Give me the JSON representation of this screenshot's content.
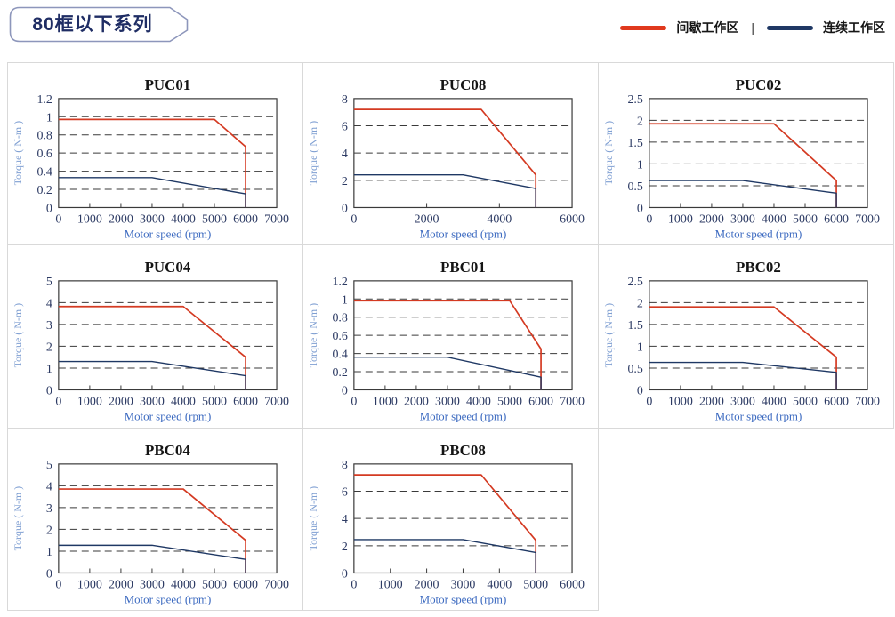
{
  "header": {
    "title": "80框以下系列"
  },
  "legend": {
    "items": [
      {
        "label": "间歇工作区",
        "color": "#e0391d"
      },
      {
        "label": "连续工作区",
        "color": "#1f3864"
      }
    ],
    "separator": "|"
  },
  "colors": {
    "intermittent": "#d43a22",
    "continuous": "#1f3864",
    "axis": "#3a3a3a",
    "tick_label": "#2c3a63",
    "title": "#141414",
    "xlabel": "#3c6ac0",
    "ylabel": "#7f9fd2",
    "cell_border": "#d9d9d9",
    "badge_border": "#8d96bb",
    "badge_text": "#1f2d64"
  },
  "chart_data": [
    {
      "type": "line",
      "title": "PUC01",
      "xlabel": "Motor speed (rpm)",
      "ylabel": "Torque ( N-m )",
      "xlim": [
        0,
        7000
      ],
      "ylim": [
        0,
        1.2
      ],
      "xticks": [
        0,
        1000,
        2000,
        3000,
        4000,
        5000,
        6000,
        7000
      ],
      "yticks": [
        0,
        0.2,
        0.4,
        0.6,
        0.8,
        1,
        1.2
      ],
      "grid": "dashed-horizontal",
      "legend_position": "none",
      "series": [
        {
          "name": "间歇工作区",
          "color_key": "intermittent",
          "points": [
            [
              0,
              0.97
            ],
            [
              5000,
              0.97
            ],
            [
              6000,
              0.67
            ],
            [
              6000,
              0
            ]
          ]
        },
        {
          "name": "连续工作区",
          "color_key": "continuous",
          "points": [
            [
              0,
              0.33
            ],
            [
              3000,
              0.33
            ],
            [
              6000,
              0.15
            ],
            [
              6000,
              0
            ]
          ]
        }
      ]
    },
    {
      "type": "line",
      "title": "PUC08",
      "xlabel": "Motor speed (rpm)",
      "ylabel": "Torque ( N-m )",
      "xlim": [
        0,
        6000
      ],
      "ylim": [
        0,
        8
      ],
      "xticks": [
        0,
        2000,
        4000,
        6000
      ],
      "yticks": [
        0,
        2,
        4,
        6,
        8
      ],
      "grid": "dashed-horizontal",
      "legend_position": "none",
      "series": [
        {
          "name": "间歇工作区",
          "color_key": "intermittent",
          "points": [
            [
              0,
              7.2
            ],
            [
              3500,
              7.2
            ],
            [
              5000,
              2.4
            ],
            [
              5000,
              0
            ]
          ]
        },
        {
          "name": "连续工作区",
          "color_key": "continuous",
          "points": [
            [
              0,
              2.4
            ],
            [
              3000,
              2.4
            ],
            [
              5000,
              1.4
            ],
            [
              5000,
              0
            ]
          ]
        }
      ]
    },
    {
      "type": "line",
      "title": "PUC02",
      "xlabel": "Motor speed (rpm)",
      "ylabel": "Torque ( N-m )",
      "xlim": [
        0,
        7000
      ],
      "ylim": [
        0,
        2.5
      ],
      "xticks": [
        0,
        1000,
        2000,
        3000,
        4000,
        5000,
        6000,
        7000
      ],
      "yticks": [
        0,
        0.5,
        1,
        1.5,
        2,
        2.5
      ],
      "grid": "dashed-horizontal",
      "legend_position": "none",
      "series": [
        {
          "name": "间歇工作区",
          "color_key": "intermittent",
          "points": [
            [
              0,
              1.92
            ],
            [
              4000,
              1.92
            ],
            [
              6000,
              0.62
            ],
            [
              6000,
              0
            ]
          ]
        },
        {
          "name": "连续工作区",
          "color_key": "continuous",
          "points": [
            [
              0,
              0.62
            ],
            [
              3000,
              0.62
            ],
            [
              6000,
              0.33
            ],
            [
              6000,
              0
            ]
          ]
        }
      ]
    },
    {
      "type": "line",
      "title": "PUC04",
      "xlabel": "Motor speed (rpm)",
      "ylabel": "Torque ( N-m )",
      "xlim": [
        0,
        7000
      ],
      "ylim": [
        0,
        5
      ],
      "xticks": [
        0,
        1000,
        2000,
        3000,
        4000,
        5000,
        6000,
        7000
      ],
      "yticks": [
        0,
        1,
        2,
        3,
        4,
        5
      ],
      "grid": "dashed-horizontal",
      "legend_position": "none",
      "series": [
        {
          "name": "间歇工作区",
          "color_key": "intermittent",
          "points": [
            [
              0,
              3.82
            ],
            [
              4000,
              3.82
            ],
            [
              6000,
              1.5
            ],
            [
              6000,
              0
            ]
          ]
        },
        {
          "name": "连续工作区",
          "color_key": "continuous",
          "points": [
            [
              0,
              1.3
            ],
            [
              3000,
              1.3
            ],
            [
              6000,
              0.65
            ],
            [
              6000,
              0
            ]
          ]
        }
      ]
    },
    {
      "type": "line",
      "title": "PBC01",
      "xlabel": "Motor speed (rpm)",
      "ylabel": "Torque ( N-m )",
      "xlim": [
        0,
        7000
      ],
      "ylim": [
        0,
        1.2
      ],
      "xticks": [
        0,
        1000,
        2000,
        3000,
        4000,
        5000,
        6000,
        7000
      ],
      "yticks": [
        0,
        0.2,
        0.4,
        0.6,
        0.8,
        1,
        1.2
      ],
      "grid": "dashed-horizontal",
      "legend_position": "none",
      "series": [
        {
          "name": "间歇工作区",
          "color_key": "intermittent",
          "points": [
            [
              0,
              0.98
            ],
            [
              5000,
              0.98
            ],
            [
              6000,
              0.45
            ],
            [
              6000,
              0
            ]
          ]
        },
        {
          "name": "连续工作区",
          "color_key": "continuous",
          "points": [
            [
              0,
              0.36
            ],
            [
              3000,
              0.36
            ],
            [
              6000,
              0.14
            ],
            [
              6000,
              0
            ]
          ]
        }
      ]
    },
    {
      "type": "line",
      "title": "PBC02",
      "xlabel": "Motor speed (rpm)",
      "ylabel": "Torque ( N-m )",
      "xlim": [
        0,
        7000
      ],
      "ylim": [
        0,
        2.5
      ],
      "xticks": [
        0,
        1000,
        2000,
        3000,
        4000,
        5000,
        6000,
        7000
      ],
      "yticks": [
        0,
        0.5,
        1,
        1.5,
        2,
        2.5
      ],
      "grid": "dashed-horizontal",
      "legend_position": "none",
      "series": [
        {
          "name": "间歇工作区",
          "color_key": "intermittent",
          "points": [
            [
              0,
              1.9
            ],
            [
              4000,
              1.9
            ],
            [
              6000,
              0.75
            ],
            [
              6000,
              0
            ]
          ]
        },
        {
          "name": "连续工作区",
          "color_key": "continuous",
          "points": [
            [
              0,
              0.63
            ],
            [
              3000,
              0.63
            ],
            [
              6000,
              0.4
            ],
            [
              6000,
              0
            ]
          ]
        }
      ]
    },
    {
      "type": "line",
      "title": "PBC04",
      "xlabel": "Motor speed (rpm)",
      "ylabel": "Torque ( N-m )",
      "xlim": [
        0,
        7000
      ],
      "ylim": [
        0,
        5
      ],
      "xticks": [
        0,
        1000,
        2000,
        3000,
        4000,
        5000,
        6000,
        7000
      ],
      "yticks": [
        0,
        1,
        2,
        3,
        4,
        5
      ],
      "grid": "dashed-horizontal",
      "legend_position": "none",
      "series": [
        {
          "name": "间歇工作区",
          "color_key": "intermittent",
          "points": [
            [
              0,
              3.85
            ],
            [
              4000,
              3.85
            ],
            [
              6000,
              1.5
            ],
            [
              6000,
              0
            ]
          ]
        },
        {
          "name": "连续工作区",
          "color_key": "continuous",
          "points": [
            [
              0,
              1.27
            ],
            [
              3000,
              1.27
            ],
            [
              6000,
              0.62
            ],
            [
              6000,
              0
            ]
          ]
        }
      ]
    },
    {
      "type": "line",
      "title": "PBC08",
      "xlabel": "Motor speed (rpm)",
      "ylabel": "Torque ( N-m )",
      "xlim": [
        0,
        6000
      ],
      "ylim": [
        0,
        8
      ],
      "xticks": [
        0,
        1000,
        2000,
        3000,
        4000,
        5000,
        6000
      ],
      "yticks": [
        0,
        2,
        4,
        6,
        8
      ],
      "grid": "dashed-horizontal",
      "legend_position": "none",
      "series": [
        {
          "name": "间歇工作区",
          "color_key": "intermittent",
          "points": [
            [
              0,
              7.2
            ],
            [
              3500,
              7.2
            ],
            [
              5000,
              2.4
            ],
            [
              5000,
              0
            ]
          ]
        },
        {
          "name": "连续工作区",
          "color_key": "continuous",
          "points": [
            [
              0,
              2.45
            ],
            [
              3000,
              2.45
            ],
            [
              5000,
              1.5
            ],
            [
              5000,
              0
            ]
          ]
        }
      ]
    }
  ]
}
